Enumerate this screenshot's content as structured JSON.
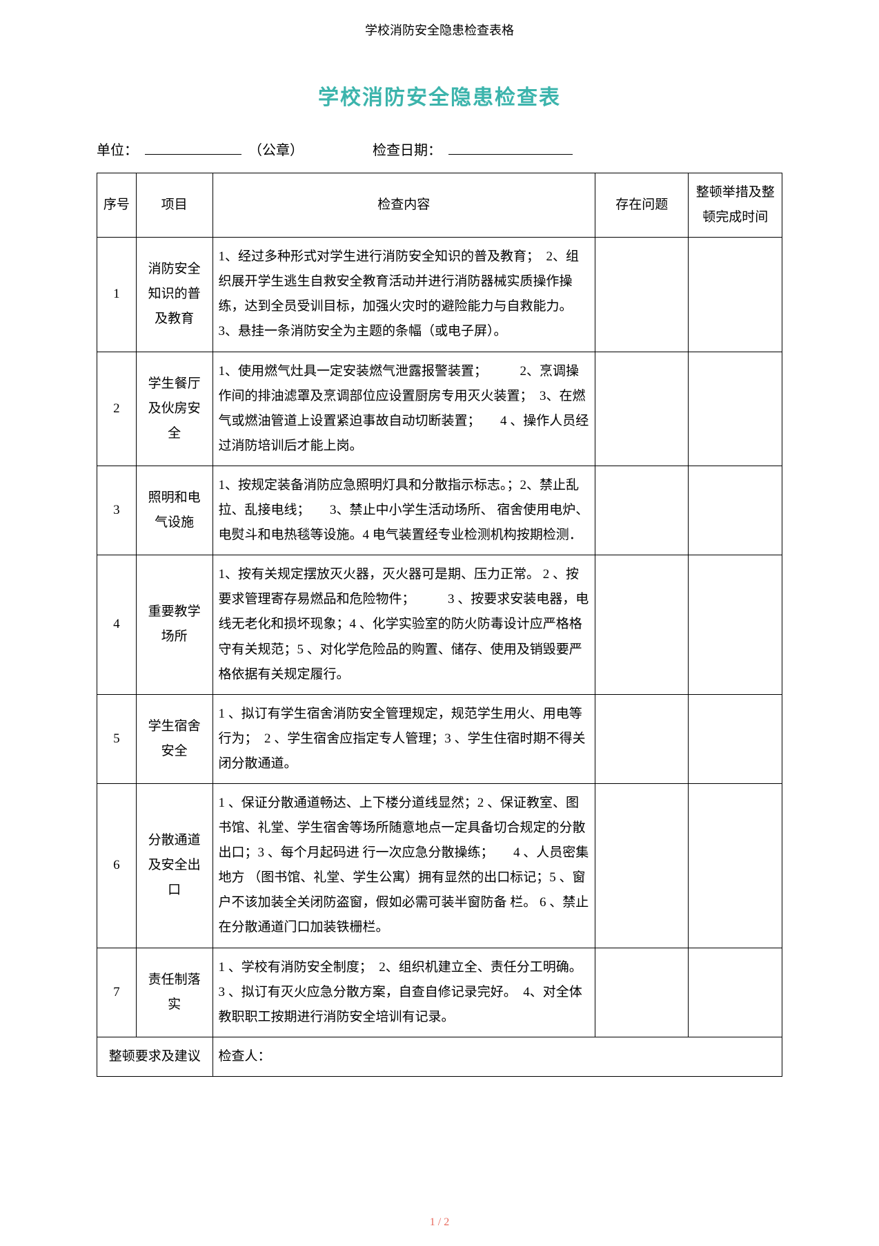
{
  "header_small": "学校消防安全隐患检查表格",
  "title": "学校消防安全隐患检查表",
  "meta": {
    "unit_label": "单位：",
    "seal_label": "（公章）",
    "date_label": "检查日期："
  },
  "columns": {
    "seq": "序号",
    "item": "项目",
    "content": "检查内容",
    "issue": "存在问题",
    "action": "整顿举措及整顿完成时间"
  },
  "rows": [
    {
      "seq": "1",
      "item": "消防安全知识的普及教育",
      "content": "1、经过多种形式对学生进行消防安全知识的普及教育；　2、组织展开学生逃生自救安全教育活动并进行消防器械实质操作操练，达到全员受训目标，加强火灾时的避险能力与自救能力。　　3、悬挂一条消防安全为主题的条幅（或电子屏）。"
    },
    {
      "seq": "2",
      "item": "学生餐厅及伙房安全",
      "content": "1、使用燃气灶具一定安装燃气泄露报警装置；　　　2、烹调操作间的排油滤罩及烹调部位应设置厨房专用灭火装置；　3、在燃气或燃油管道上设置紧迫事故自动切断装置；　　4 、操作人员经过消防培训后才能上岗。"
    },
    {
      "seq": "3",
      "item": "照明和电气设施",
      "content": "1、按规定装备消防应急照明灯具和分散指示标志。；2、禁止乱拉、乱接电线；　　3、禁止中小学生活动场所、 宿舍使用电炉、 电熨斗和电热毯等设施。4 电气装置经专业检测机构按期检测．"
    },
    {
      "seq": "4",
      "item": "重要教学场所",
      "content": "1、按有关规定摆放灭火器，灭火器可是期、压力正常。 2 、按要求管理寄存易燃品和危险物件；　　　3 、按要求安装电器，电线无老化和损坏现象；4 、化学实验室的防火防毒设计应严格格守有关规范；5 、对化学危险品的购置、储存、使用及销毁要严格依据有关规定履行。"
    },
    {
      "seq": "5",
      "item": "学生宿舍安全",
      "content": "1 、拟订有学生宿舍消防安全管理规定，规范学生用火、用电等行为；　2 、学生宿舍应指定专人管理；3 、学生住宿时期不得关闭分散通道。"
    },
    {
      "seq": "6",
      "item": "分散通道及安全出口",
      "content": "1 、保证分散通道畅达、上下楼分道线显然；2 、保证教室、图书馆、礼堂、学生宿舍等场所随意地点一定具备切合规定的分散出口；3 、每个月起码进\n行一次应急分散操练；　　4 、人员密集地方 （图书馆、礼堂、学生公寓）拥有显然的出口标记；5 、窗户不该加装全关闭防盗窗，假如必需可装半窗防备\n栏。 6 、禁止在分散通道门口加装铁栅栏。"
    },
    {
      "seq": "7",
      "item": "责任制落实",
      "content": "1 、学校有消防安全制度；　2、组织机建立全、责任分工明确。 3 、拟订有灭火应急分散方案，自查自修记录完好。　4、对全体教职职工按期进行消防安全培训有记录。"
    }
  ],
  "footer": {
    "label": "整顿要求及建议",
    "inspector_label": "检查人："
  },
  "page_number": "1 / 2",
  "style": {
    "title_color": "#3cb4ac",
    "page_num_color": "#e86a5e",
    "border_color": "#000000",
    "base_font_size": 19
  }
}
